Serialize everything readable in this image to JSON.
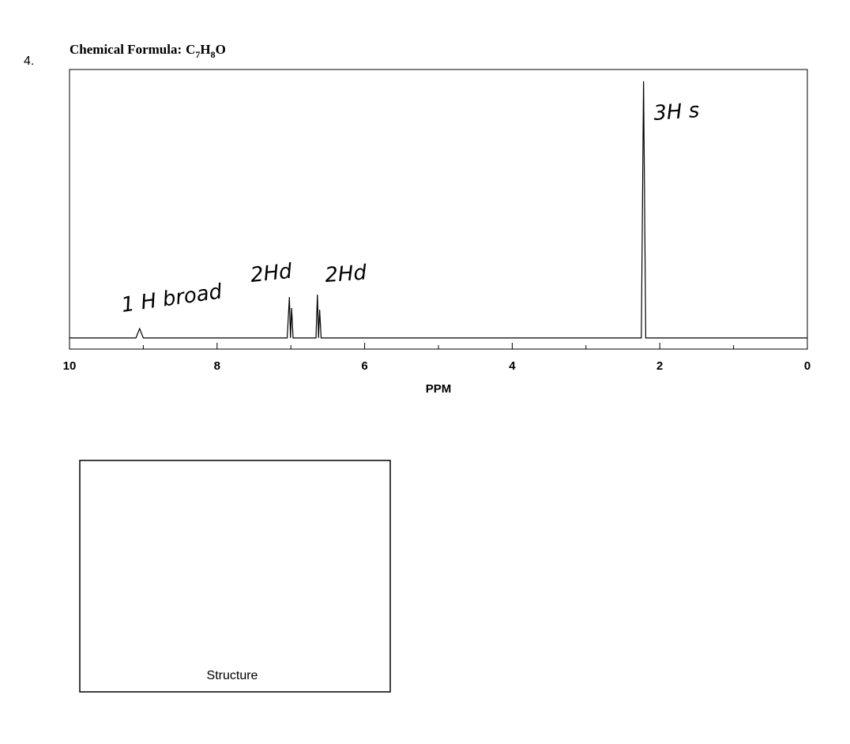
{
  "question": {
    "number": "4.",
    "label": "Chemical Formula:",
    "formula": [
      "C",
      "7",
      "H",
      "8",
      "O"
    ]
  },
  "chart_data": {
    "type": "line",
    "x_label": "PPM",
    "x": [
      10,
      9.1,
      9.05,
      9.0,
      7.05,
      7.02,
      7.005,
      6.99,
      6.97,
      6.66,
      6.64,
      6.625,
      6.61,
      6.59,
      2.25,
      2.22,
      2.19,
      0
    ],
    "values": [
      4,
      4,
      7.3,
      4,
      4,
      18.6,
      4,
      14.7,
      4,
      4,
      19.5,
      4,
      14.1,
      4,
      4,
      95.8,
      4,
      4
    ],
    "color": "#000000",
    "xlim": [
      10,
      0
    ],
    "ylim": [
      0,
      100
    ],
    "xticks": [
      10,
      8,
      6,
      4,
      2,
      0
    ],
    "xminorticks": [
      9,
      7,
      5,
      3,
      1
    ],
    "annotations": [
      "1 H broad",
      "2Hd",
      "2Hd",
      "3H s"
    ]
  },
  "structure_box": {
    "label": "Structure"
  }
}
